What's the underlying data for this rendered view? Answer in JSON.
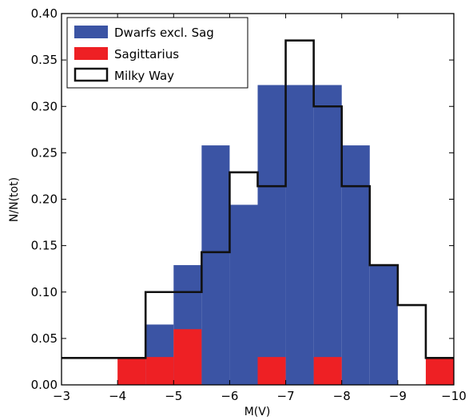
{
  "chart_data": {
    "type": "bar",
    "xlabel": "M(V)",
    "ylabel": "N/N(tot)",
    "xlim": [
      -3,
      -10
    ],
    "ylim": [
      0,
      0.4
    ],
    "x_ticks": [
      "−3",
      "−4",
      "−5",
      "−6",
      "−7",
      "−8",
      "−9",
      "−10"
    ],
    "y_ticks": [
      "0.00",
      "0.05",
      "0.10",
      "0.15",
      "0.20",
      "0.25",
      "0.30",
      "0.35",
      "0.40"
    ],
    "x_tick_values": [
      -3,
      -4,
      -5,
      -6,
      -7,
      -8,
      -9,
      -10
    ],
    "y_tick_values": [
      0,
      0.05,
      0.1,
      0.15,
      0.2,
      0.25,
      0.3,
      0.35,
      0.4
    ],
    "bin_edges": [
      -3.0,
      -3.5,
      -4.0,
      -4.5,
      -5.0,
      -5.5,
      -6.0,
      -6.5,
      -7.0,
      -7.5,
      -8.0,
      -8.5,
      -9.0,
      -9.5,
      -10.0
    ],
    "series": [
      {
        "name": "Dwarfs excl. Sag",
        "style": "filled",
        "color": "#3b54a4",
        "values": [
          0,
          0,
          0,
          0.065,
          0.129,
          0.258,
          0.194,
          0.323,
          0.323,
          0.323,
          0.258,
          0.129,
          0,
          0
        ]
      },
      {
        "name": "Sagittarius",
        "style": "filled",
        "color": "#ee2024",
        "values": [
          0,
          0,
          0.03,
          0.03,
          0.06,
          0,
          0,
          0.03,
          0,
          0.03,
          0,
          0,
          0,
          0.03
        ]
      },
      {
        "name": "Milky Way",
        "style": "step",
        "color": "#111111",
        "values": [
          0.029,
          0.029,
          0.029,
          0.1,
          0.1,
          0.143,
          0.229,
          0.214,
          0.371,
          0.3,
          0.214,
          0.129,
          0.086,
          0.029
        ]
      }
    ],
    "legend": {
      "position": "top-left",
      "entries": [
        "Dwarfs excl. Sag",
        "Sagittarius",
        "Milky Way"
      ]
    }
  }
}
